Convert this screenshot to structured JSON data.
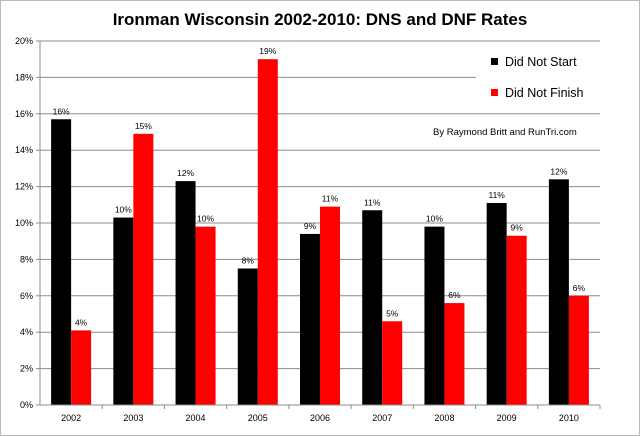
{
  "chart_data": {
    "type": "bar",
    "title": "Ironman Wisconsin 2002-2010: DNS and DNF Rates",
    "categories": [
      "2002",
      "2003",
      "2004",
      "2005",
      "2006",
      "2007",
      "2008",
      "2009",
      "2010"
    ],
    "series": [
      {
        "name": "Did Not Start",
        "color": "#000000",
        "values": [
          15.7,
          10.3,
          12.3,
          7.5,
          9.4,
          10.7,
          9.8,
          11.1,
          12.4
        ],
        "labels": [
          "16%",
          "10%",
          "12%",
          "8%",
          "9%",
          "11%",
          "10%",
          "11%",
          "12%"
        ]
      },
      {
        "name": "Did Not Finish",
        "color": "#ff0000",
        "values": [
          4.1,
          14.9,
          9.8,
          19.0,
          10.9,
          4.6,
          5.6,
          9.3,
          6.0
        ],
        "labels": [
          "4%",
          "15%",
          "10%",
          "19%",
          "11%",
          "5%",
          "6%",
          "9%",
          "6%"
        ]
      }
    ],
    "ylim": [
      0,
      20
    ],
    "yticks": [
      "0%",
      "2%",
      "4%",
      "6%",
      "8%",
      "10%",
      "12%",
      "14%",
      "16%",
      "18%",
      "20%"
    ],
    "grid": true,
    "legend_position": "top-right",
    "annotation": "By Raymond Britt and RunTri.com",
    "xlabel": "",
    "ylabel": ""
  }
}
